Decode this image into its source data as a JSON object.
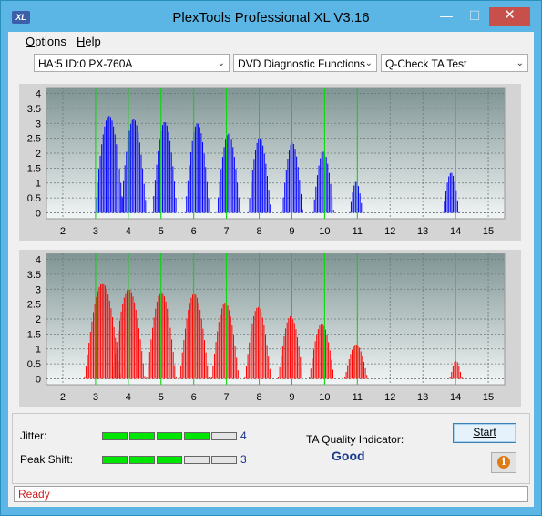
{
  "window": {
    "title": "PlexTools Professional XL V3.16",
    "logo_text": "XL",
    "minimize_glyph": "—",
    "maximize_glyph": "☐",
    "close_glyph": "✕"
  },
  "menu": {
    "options": {
      "accel": "O",
      "rest": "ptions"
    },
    "help": {
      "accel": "H",
      "rest": "elp"
    }
  },
  "toolbar": {
    "drive": "HA:5 ID:0  PX-760A",
    "function": "DVD Diagnostic Functions",
    "test": "Q-Check TA Test",
    "dropdown_glyph": "⌄"
  },
  "charts": {
    "y_ticks": [
      "0",
      "0.5",
      "1",
      "1.5",
      "2",
      "2.5",
      "3",
      "3.5",
      "4"
    ],
    "x_ticks": [
      "2",
      "3",
      "4",
      "5",
      "6",
      "7",
      "8",
      "9",
      "10",
      "11",
      "12",
      "13",
      "14",
      "15"
    ],
    "colors": {
      "top": "#0000ff",
      "bottom": "#ff0000",
      "marker": "#00dd00",
      "bg_top": "#7f9494",
      "bg_bottom": "#f2f5f5"
    },
    "marker_positions": [
      3,
      4,
      5,
      6,
      7,
      8,
      9,
      10,
      11,
      14
    ]
  },
  "chart_data": [
    {
      "type": "area",
      "series": [
        {
          "color": "#0000ff",
          "peaks": [
            {
              "center": 3.4,
              "height": 3.25,
              "halfwidth": 0.45
            },
            {
              "center": 4.15,
              "height": 3.15,
              "halfwidth": 0.4
            },
            {
              "center": 5.1,
              "height": 3.05,
              "halfwidth": 0.38
            },
            {
              "center": 6.1,
              "height": 3.0,
              "halfwidth": 0.38
            },
            {
              "center": 7.05,
              "height": 2.65,
              "halfwidth": 0.36
            },
            {
              "center": 8.0,
              "height": 2.5,
              "halfwidth": 0.35
            },
            {
              "center": 9.0,
              "height": 2.35,
              "halfwidth": 0.32
            },
            {
              "center": 9.95,
              "height": 2.05,
              "halfwidth": 0.32
            },
            {
              "center": 10.95,
              "height": 1.05,
              "halfwidth": 0.2
            },
            {
              "center": 13.85,
              "height": 1.35,
              "halfwidth": 0.25
            }
          ]
        }
      ],
      "xlim": [
        1.5,
        15.5
      ],
      "ylim": [
        -0.2,
        4.2
      ]
    },
    {
      "type": "area",
      "series": [
        {
          "color": "#ff0000",
          "peaks": [
            {
              "center": 3.2,
              "height": 3.2,
              "halfwidth": 0.55
            },
            {
              "center": 4.0,
              "height": 3.0,
              "halfwidth": 0.5
            },
            {
              "center": 5.0,
              "height": 2.9,
              "halfwidth": 0.45
            },
            {
              "center": 6.0,
              "height": 2.85,
              "halfwidth": 0.45
            },
            {
              "center": 6.95,
              "height": 2.55,
              "halfwidth": 0.42
            },
            {
              "center": 7.95,
              "height": 2.4,
              "halfwidth": 0.4
            },
            {
              "center": 8.95,
              "height": 2.1,
              "halfwidth": 0.38
            },
            {
              "center": 9.9,
              "height": 1.85,
              "halfwidth": 0.38
            },
            {
              "center": 10.95,
              "height": 1.15,
              "halfwidth": 0.35
            },
            {
              "center": 14.0,
              "height": 0.6,
              "halfwidth": 0.18
            }
          ]
        }
      ],
      "xlim": [
        1.5,
        15.5
      ],
      "ylim": [
        -0.2,
        4.2
      ]
    }
  ],
  "metrics": {
    "jitter": {
      "label": "Jitter:",
      "value": "4",
      "level": 4,
      "max": 5
    },
    "peak_shift": {
      "label": "Peak Shift:",
      "value": "3",
      "level": 3,
      "max": 5
    }
  },
  "ta": {
    "label": "TA Quality Indicator:",
    "value": "Good"
  },
  "buttons": {
    "start": "Start",
    "info_glyph": "i"
  },
  "status": {
    "text": "Ready"
  }
}
